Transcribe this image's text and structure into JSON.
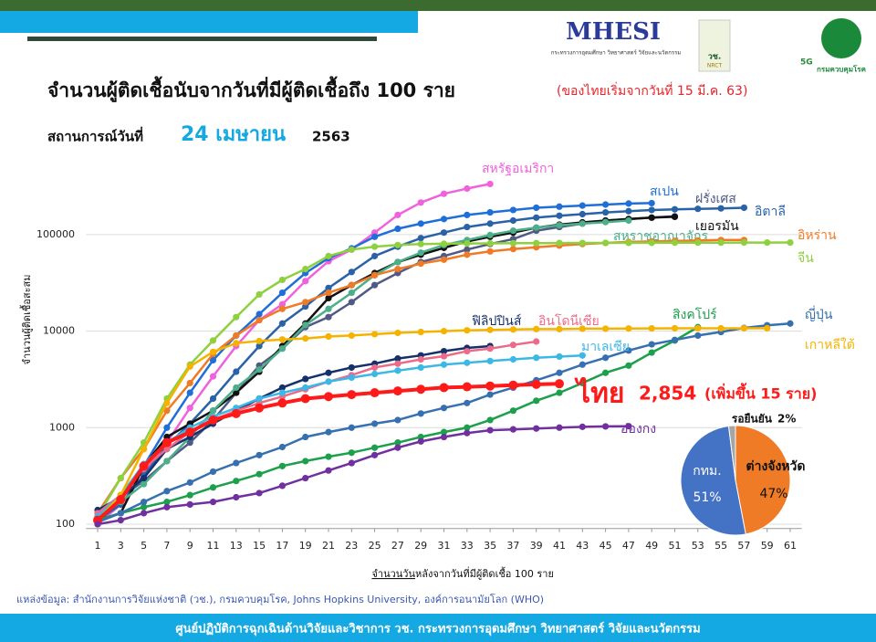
{
  "header": {
    "logo_text": "MHESI",
    "logo_sub": "กระทรวงการอุดมศึกษา วิทยาศาสตร์ วิจัยและนวัตกรรม",
    "nrct": "วช.",
    "nrct_en": "NRCT",
    "fiveg": "5G",
    "ddc": "กรมควบคุมโรค"
  },
  "chart_data": [
    {
      "type": "line",
      "title": "จำนวนผู้ติดเชื้อนับจากวันที่มีผู้ติดเชื้อถึง 100 ราย",
      "title_note": "(ของไทยเริ่มจากวันที่ 15 มี.ค. 63)",
      "subtitle_prefix": "สถานการณ์วันที่",
      "subtitle_date": "24 เมษายน",
      "subtitle_year": "2563",
      "x_label_underlined": "จำนวนวัน",
      "x_label_rest": "หลังจากวันที่มีผู้ติดเชื้อ 100 ราย",
      "y_label": "จำนวนผู้ติดเชื้อสะสม",
      "log_scale": true,
      "grid": true,
      "x": [
        1,
        3,
        5,
        7,
        9,
        11,
        13,
        15,
        17,
        19,
        21,
        23,
        25,
        27,
        29,
        31,
        33,
        35,
        37,
        39,
        41,
        43,
        45,
        47,
        49,
        51,
        53,
        55,
        57,
        59,
        61
      ],
      "xlim": [
        0,
        62
      ],
      "xticks": [
        1,
        3,
        5,
        7,
        9,
        11,
        13,
        15,
        17,
        19,
        21,
        23,
        25,
        27,
        29,
        31,
        33,
        35,
        37,
        39,
        41,
        43,
        45,
        47,
        49,
        51,
        53,
        55,
        57,
        59,
        61
      ],
      "ylim": [
        90,
        600000
      ],
      "yticks": [
        100,
        1000,
        10000,
        100000
      ],
      "series": [
        {
          "name": "สหรัฐอเมริกา",
          "color": "#f062dd",
          "values": [
            100,
            160,
            330,
            700,
            1600,
            3400,
            7000,
            13000,
            19000,
            33000,
            53000,
            70000,
            105000,
            160000,
            215000,
            265000,
            300000,
            335000,
            null,
            null,
            null,
            null,
            null,
            null,
            null,
            null,
            null,
            null,
            null,
            null,
            null
          ]
        },
        {
          "name": "สเปน",
          "color": "#1f6fd8",
          "values": [
            120,
            200,
            400,
            1000,
            2300,
            5000,
            9000,
            15000,
            25000,
            40000,
            57000,
            72000,
            95000,
            115000,
            130000,
            145000,
            160000,
            170000,
            180000,
            190000,
            195000,
            200000,
            205000,
            210000,
            212000,
            null,
            null,
            null,
            null,
            null,
            null
          ]
        },
        {
          "name": "ฝรั่งเศส",
          "color": "#505a84",
          "values": [
            100,
            190,
            280,
            450,
            700,
            1200,
            2300,
            4400,
            6600,
            11000,
            14000,
            20000,
            30000,
            40000,
            52000,
            60000,
            70000,
            80000,
            90000,
            110000,
            120000,
            130000,
            140000,
            145000,
            150000,
            155000,
            null,
            null,
            null,
            null,
            null
          ]
        },
        {
          "name": "อิตาลี",
          "color": "#2a62a8",
          "values": [
            110,
            160,
            320,
            650,
            1100,
            2000,
            3800,
            7000,
            12000,
            18000,
            28000,
            41000,
            60000,
            75000,
            92000,
            105000,
            120000,
            130000,
            140000,
            150000,
            157000,
            163000,
            170000,
            175000,
            180000,
            183000,
            185000,
            187000,
            190000,
            null,
            null
          ]
        },
        {
          "name": "เยอรมัน",
          "color": "#111111",
          "values": [
            110,
            130,
            400,
            800,
            1100,
            1500,
            2300,
            3800,
            7000,
            12000,
            22000,
            30000,
            40000,
            52000,
            62000,
            73000,
            85000,
            95000,
            105000,
            118000,
            127000,
            134000,
            140000,
            145000,
            150000,
            153000,
            null,
            null,
            null,
            null,
            null
          ]
        },
        {
          "name": "สหราชอาณาจักร",
          "color": "#4caf8a",
          "values": [
            120,
            170,
            260,
            450,
            800,
            1500,
            2600,
            4000,
            6600,
            11600,
            17000,
            25000,
            38000,
            52000,
            65000,
            78000,
            88000,
            99000,
            110000,
            118000,
            125000,
            130000,
            135000,
            140000,
            null,
            null,
            null,
            null,
            null,
            null,
            null
          ]
        },
        {
          "name": "อิหร่าน",
          "color": "#f07b26",
          "values": [
            130,
            300,
            600,
            1500,
            2900,
            5800,
            9000,
            13000,
            17000,
            20000,
            25000,
            30000,
            38000,
            44000,
            50000,
            55000,
            62000,
            67000,
            71000,
            74000,
            77000,
            80000,
            82000,
            84000,
            85000,
            86000,
            87000,
            88000,
            88000,
            null,
            null
          ]
        },
        {
          "name": "จีน",
          "color": "#8fd03f",
          "values": [
            120,
            300,
            700,
            2000,
            4500,
            8000,
            14000,
            24000,
            34000,
            44000,
            60000,
            70000,
            75000,
            78000,
            80000,
            80500,
            81000,
            81200,
            81500,
            81700,
            81900,
            82000,
            82100,
            82200,
            82300,
            82500,
            82600,
            82700,
            82800,
            82800,
            82900
          ]
        },
        {
          "name": "ฟิลิปปินส์",
          "color": "#15316b",
          "values": [
            140,
            190,
            300,
            600,
            800,
            1100,
            1500,
            2000,
            2600,
            3200,
            3700,
            4200,
            4600,
            5200,
            5600,
            6200,
            6700,
            7000,
            null,
            null,
            null,
            null,
            null,
            null,
            null,
            null,
            null,
            null,
            null,
            null,
            null
          ]
        },
        {
          "name": "อินโดนีเซีย",
          "color": "#ec6b8a",
          "values": [
            130,
            200,
            380,
            600,
            900,
            1200,
            1500,
            1800,
            2100,
            2500,
            3000,
            3500,
            4200,
            4600,
            5100,
            5500,
            6200,
            6600,
            7200,
            7800,
            null,
            null,
            null,
            null,
            null,
            null,
            null,
            null,
            null,
            null,
            null
          ]
        },
        {
          "name": "สิงคโปร์",
          "color": "#1ca04c",
          "values": [
            110,
            130,
            150,
            170,
            200,
            240,
            280,
            330,
            400,
            450,
            500,
            550,
            620,
            700,
            800,
            900,
            1000,
            1200,
            1500,
            1900,
            2300,
            2900,
            3700,
            4400,
            6000,
            8000,
            11000,
            null,
            null,
            null,
            null
          ]
        },
        {
          "name": "ญี่ปุ่น",
          "color": "#3670b0",
          "values": [
            105,
            130,
            170,
            220,
            270,
            350,
            430,
            520,
            630,
            800,
            900,
            1000,
            1100,
            1200,
            1400,
            1600,
            1800,
            2200,
            2600,
            3100,
            3700,
            4500,
            5300,
            6300,
            7300,
            8100,
            9000,
            9800,
            10800,
            11500,
            12000
          ]
        },
        {
          "name": "มาเลเซีย",
          "color": "#3cb8e6",
          "values": [
            120,
            200,
            420,
            700,
            1000,
            1300,
            1600,
            2000,
            2300,
            2600,
            3000,
            3300,
            3600,
            3900,
            4200,
            4500,
            4700,
            4900,
            5100,
            5300,
            5450,
            5600,
            null,
            null,
            null,
            null,
            null,
            null,
            null,
            null,
            null
          ]
        },
        {
          "name": "เกาหลีใต้",
          "color": "#f5b300",
          "values": [
            110,
            200,
            600,
            1800,
            4300,
            6100,
            7500,
            7900,
            8200,
            8400,
            8800,
            9000,
            9300,
            9600,
            9800,
            10000,
            10200,
            10300,
            10400,
            10500,
            10500,
            10600,
            10600,
            10650,
            10680,
            10700,
            10700,
            10700,
            10710,
            10720,
            null
          ]
        },
        {
          "name": "ไทย",
          "color": "#ff1a1a",
          "values": [
            110,
            180,
            400,
            700,
            900,
            1200,
            1400,
            1600,
            1800,
            2000,
            2100,
            2200,
            2300,
            2400,
            2500,
            2600,
            2650,
            2700,
            2760,
            2810,
            2854,
            null,
            null,
            null,
            null,
            null,
            null,
            null,
            null,
            null,
            null
          ]
        },
        {
          "name": "ฮ่องกง",
          "color": "#7030a0",
          "values": [
            100,
            110,
            130,
            150,
            160,
            170,
            190,
            210,
            250,
            300,
            360,
            430,
            520,
            620,
            720,
            800,
            880,
            940,
            960,
            980,
            1000,
            1020,
            1030,
            1036,
            null,
            null,
            null,
            null,
            null,
            null,
            null
          ]
        }
      ],
      "annotation": {
        "total": "2,854",
        "increase": "(เพิ่มขึ้น 15 ราย)"
      }
    },
    {
      "type": "pie",
      "categories": [
        "กทม.",
        "ต่างจังหวัด",
        "รอยืนยัน"
      ],
      "values": [
        51,
        47,
        2
      ],
      "value_labels": [
        "51%",
        "47%",
        "2%"
      ],
      "colors": [
        "#4472c4",
        "#f07b26",
        "#a5a5a5"
      ]
    }
  ],
  "source": "แหล่งข้อมูล: สำนักงานการวิจัยแห่งชาติ (วช.), กรมควบคุมโรค, Johns Hopkins University, องค์การอนามัยโลก (WHO)",
  "footer": "ศูนย์ปฏิบัติการฉุกเฉินด้านวิจัยและวิชาการ   วช.   กระทรวงการอุดมศึกษา วิทยาศาสตร์ วิจัยและนวัตกรรม"
}
